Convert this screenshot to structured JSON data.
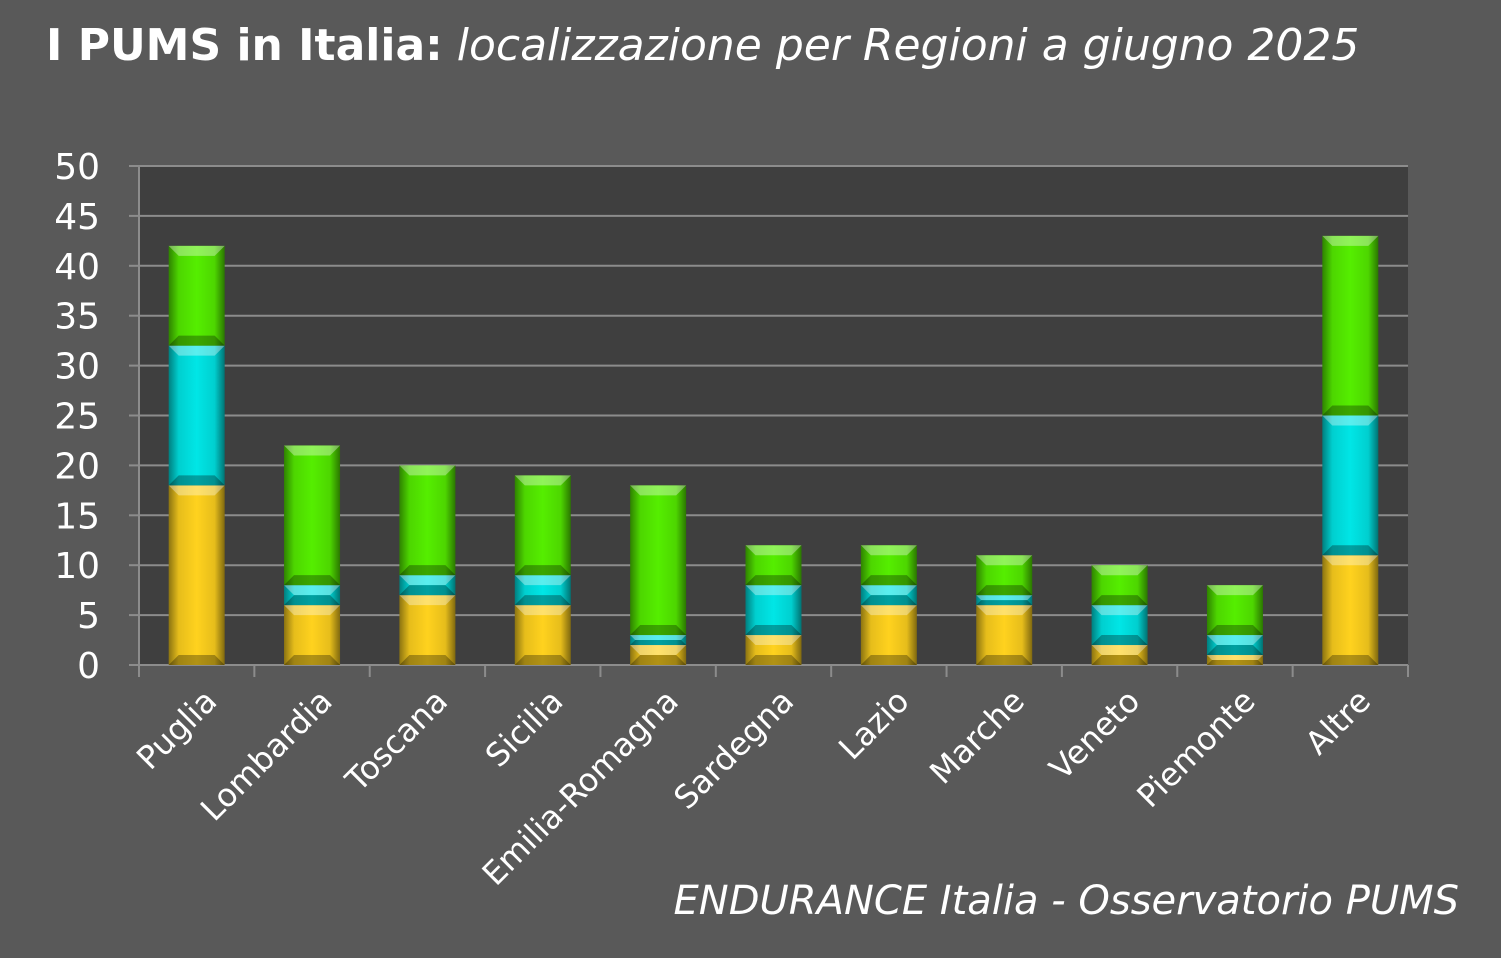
{
  "title": {
    "main": "I PUMS in Italia:",
    "sub": "localizzazione per Regioni a giugno 2025"
  },
  "source": "ENDURANCE Italia - Osservatorio PUMS",
  "colors": {
    "background": "#595959",
    "plot_area": "#3f3f3f",
    "gridline": "#8c8c8c",
    "yellow": "#ffd21e",
    "cyan": "#00e6e6",
    "green": "#55ee00"
  },
  "chart_data": {
    "type": "bar",
    "stacked": true,
    "categories": [
      "Puglia",
      "Lombardia",
      "Toscana",
      "Sicilia",
      "Emilia-Romagna",
      "Sardegna",
      "Lazio",
      "Marche",
      "Veneto",
      "Piemonte",
      "Altre"
    ],
    "series": [
      {
        "color": "yellow",
        "values": [
          18,
          6,
          7,
          6,
          2,
          3,
          6,
          6,
          2,
          1,
          11
        ]
      },
      {
        "color": "cyan",
        "values": [
          14,
          2,
          2,
          3,
          1,
          5,
          2,
          1,
          4,
          2,
          14
        ]
      },
      {
        "color": "green",
        "values": [
          10,
          14,
          11,
          10,
          15,
          4,
          4,
          4,
          4,
          5,
          18
        ]
      }
    ],
    "y_ticks": [
      "0",
      "5",
      "10",
      "15",
      "20",
      "25",
      "30",
      "35",
      "40",
      "45",
      "50"
    ],
    "ylim": [
      0,
      50
    ],
    "grid": true,
    "legend": "none"
  }
}
